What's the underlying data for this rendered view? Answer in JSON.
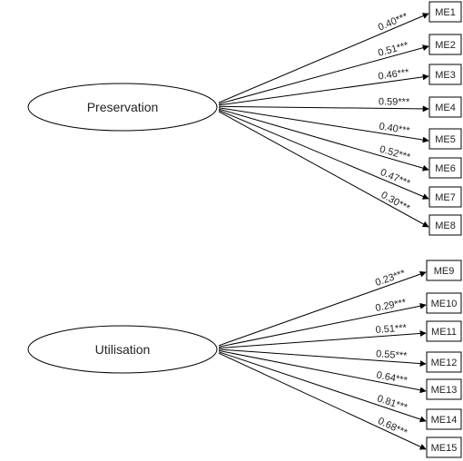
{
  "diagram": {
    "factors": [
      {
        "name": "Preservation",
        "items": [
          {
            "label": "ME1",
            "loading": "0.40***"
          },
          {
            "label": "ME2",
            "loading": "0.51***"
          },
          {
            "label": "ME3",
            "loading": "0.46***"
          },
          {
            "label": "ME4",
            "loading": "0.59***"
          },
          {
            "label": "ME5",
            "loading": "0.40***"
          },
          {
            "label": "ME6",
            "loading": "0.52***"
          },
          {
            "label": "ME7",
            "loading": "0.47***"
          },
          {
            "label": "ME8",
            "loading": "0.30***"
          }
        ]
      },
      {
        "name": "Utilisation",
        "items": [
          {
            "label": "ME9",
            "loading": "0.23***"
          },
          {
            "label": "ME10",
            "loading": "0.29***"
          },
          {
            "label": "ME11",
            "loading": "0.51***"
          },
          {
            "label": "ME12",
            "loading": "0.55***"
          },
          {
            "label": "ME13",
            "loading": "0.64***"
          },
          {
            "label": "ME14",
            "loading": "0.81***"
          },
          {
            "label": "ME15",
            "loading": "0.68***"
          }
        ]
      }
    ]
  }
}
